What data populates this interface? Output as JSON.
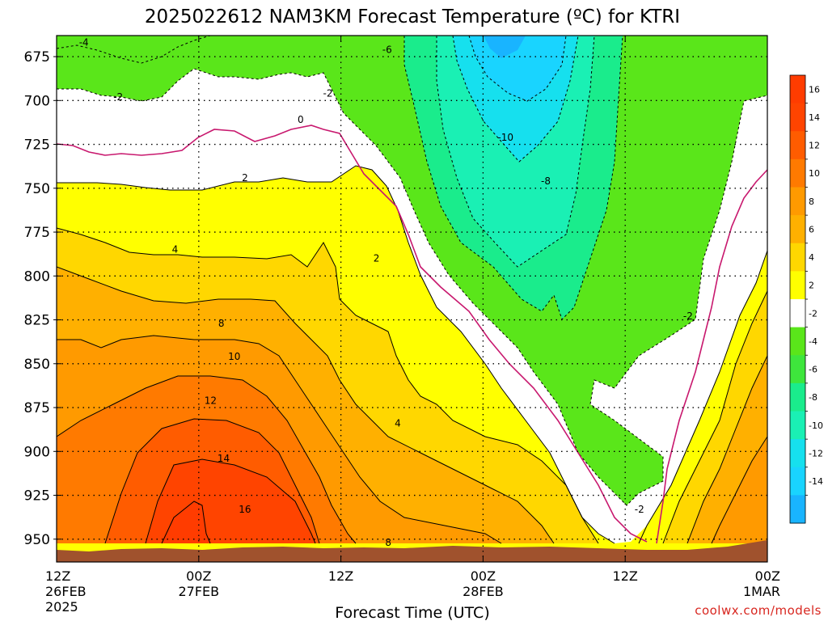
{
  "title": "2025022612 NAM3KM Forecast Temperature (ºC) for KTRI",
  "credit": "coolwx.com/models",
  "colors": {
    "t_le_-12": "#19b4ff",
    "t_-12_-10": "#16e0ee",
    "t_-10_-8": "#1af0b4",
    "t_-8_-6": "#1aec8c",
    "t_-6_-2": "#5ae61a",
    "t_-2_2": "#ffffff",
    "t_2_4": "#ffff00",
    "t_4_6": "#ffd700",
    "t_6_8": "#ffb000",
    "t_8_10": "#ff9a00",
    "t_10_12": "#ff7a00",
    "t_12_14": "#ff5c00",
    "t_14_16": "#ff4400",
    "t_ge_16": "#ff3c00",
    "freezing_line": "#c8186e",
    "terrain": "#a0522d"
  },
  "chart_data": {
    "type": "heatmap",
    "title": "2025022612 NAM3KM Forecast Temperature (ºC) for KTRI",
    "xlabel": "Forecast Time (UTC)",
    "ylabel": "",
    "x_ticks": [
      {
        "label": "12Z",
        "date": "26FEB",
        "year": "2025",
        "hours": 0
      },
      {
        "label": "00Z",
        "date": "27FEB",
        "year": "",
        "hours": 12
      },
      {
        "label": "12Z",
        "date": "",
        "year": "",
        "hours": 24
      },
      {
        "label": "00Z",
        "date": "28FEB",
        "year": "",
        "hours": 36
      },
      {
        "label": "12Z",
        "date": "",
        "year": "",
        "hours": 48
      },
      {
        "label": "00Z",
        "date": "1MAR",
        "year": "",
        "hours": 60
      }
    ],
    "x_range_hours": [
      0,
      60
    ],
    "y_ticks": [
      675,
      700,
      725,
      750,
      775,
      800,
      825,
      850,
      875,
      900,
      925,
      950
    ],
    "y_range_hpa": [
      663,
      963
    ],
    "y_inverted": true,
    "grid": "dotted",
    "colorbar": {
      "labels": [
        "16",
        "14",
        "12",
        "10",
        "8",
        "6",
        "4",
        "2",
        "-2",
        "-4",
        "-6",
        "-8",
        "-10",
        "-12",
        "-14"
      ],
      "bins": [
        {
          "min": 16,
          "max": 18,
          "color": "#ff3c00"
        },
        {
          "min": 14,
          "max": 16,
          "color": "#ff4400"
        },
        {
          "min": 12,
          "max": 14,
          "color": "#ff5c00"
        },
        {
          "min": 10,
          "max": 12,
          "color": "#ff7a00"
        },
        {
          "min": 8,
          "max": 10,
          "color": "#ff9a00"
        },
        {
          "min": 6,
          "max": 8,
          "color": "#ffb000"
        },
        {
          "min": 4,
          "max": 6,
          "color": "#ffd700"
        },
        {
          "min": 2,
          "max": 4,
          "color": "#ffff00"
        },
        {
          "min": -2,
          "max": 2,
          "color": "#ffffff"
        },
        {
          "min": -4,
          "max": -2,
          "color": "#5ae61a"
        },
        {
          "min": -6,
          "max": -4,
          "color": "#3ee63c"
        },
        {
          "min": -8,
          "max": -6,
          "color": "#1aec8c"
        },
        {
          "min": -10,
          "max": -8,
          "color": "#1af0b4"
        },
        {
          "min": -12,
          "max": -10,
          "color": "#16e0ee"
        },
        {
          "min": -14,
          "max": -12,
          "color": "#19d4ff"
        },
        {
          "min": -16,
          "max": -14,
          "color": "#19b4ff"
        }
      ]
    },
    "contour_labels": [
      {
        "text": "-4",
        "t": 2.3,
        "p": 667
      },
      {
        "text": "-6",
        "t": 27.9,
        "p": 671
      },
      {
        "text": "-2",
        "t": 5.2,
        "p": 698
      },
      {
        "text": "-2",
        "t": 22.9,
        "p": 696
      },
      {
        "text": "0",
        "t": 20.6,
        "p": 711
      },
      {
        "text": "-10",
        "t": 37.9,
        "p": 721
      },
      {
        "text": "-8",
        "t": 41.3,
        "p": 746
      },
      {
        "text": "2",
        "t": 15.9,
        "p": 744
      },
      {
        "text": "4",
        "t": 10.0,
        "p": 785
      },
      {
        "text": "2",
        "t": 27.0,
        "p": 790
      },
      {
        "text": "-2",
        "t": 53.3,
        "p": 823
      },
      {
        "text": "8",
        "t": 13.9,
        "p": 827
      },
      {
        "text": "10",
        "t": 15.0,
        "p": 846
      },
      {
        "text": "12",
        "t": 13.0,
        "p": 871
      },
      {
        "text": "4",
        "t": 28.8,
        "p": 884
      },
      {
        "text": "14",
        "t": 14.1,
        "p": 904
      },
      {
        "text": "-2",
        "t": 49.2,
        "p": 933
      },
      {
        "text": "8",
        "t": 28.0,
        "p": 952
      },
      {
        "text": "16",
        "t": 15.9,
        "p": 933
      }
    ]
  }
}
